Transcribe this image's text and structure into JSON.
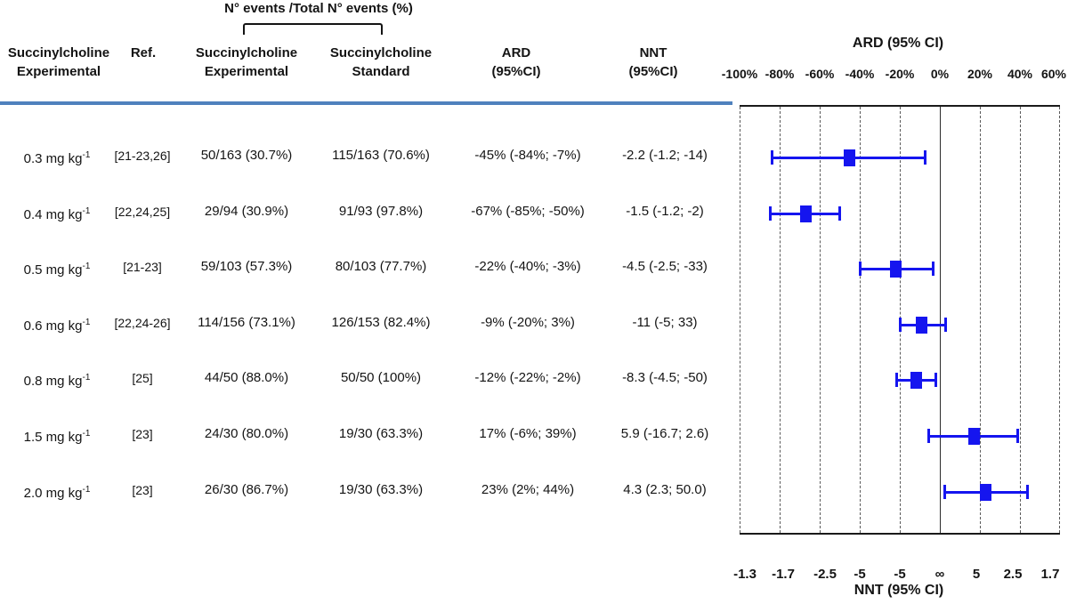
{
  "figure": {
    "bracket_label": "N° events /Total N° events (%)",
    "columns": {
      "dose_line1": "Succinylcholine",
      "dose_line2": "Experimental",
      "ref": "Ref.",
      "exp_line1": "Succinylcholine",
      "exp_line2": "Experimental",
      "std_line1": "Succinylcholine",
      "std_line2": "Standard",
      "ard_line1": "ARD",
      "ard_line2": "(95%CI)",
      "nnt_line1": "NNT",
      "nnt_line2": "(95%CI)"
    },
    "rows": [
      {
        "dose": "0.3 mg kg",
        "dose_sup": "-1",
        "ref": "[21-23,26]",
        "experimental": "50/163 (30.7%)",
        "standard": "115/163 (70.6%)",
        "ard": "-45% (-84%; -7%)",
        "nnt": "-2.2 (-1.2; -14)"
      },
      {
        "dose": "0.4 mg kg",
        "dose_sup": "-1",
        "ref": "[22,24,25]",
        "experimental": "29/94 (30.9%)",
        "standard": "91/93 (97.8%)",
        "ard": "-67% (-85%; -50%)",
        "nnt": "-1.5 (-1.2; -2)"
      },
      {
        "dose": "0.5 mg kg",
        "dose_sup": "-1",
        "ref": "[21-23]",
        "experimental": "59/103 (57.3%)",
        "standard": "80/103 (77.7%)",
        "ard": "-22% (-40%; -3%)",
        "nnt": "-4.5 (-2.5; -33)"
      },
      {
        "dose": "0.6 mg kg",
        "dose_sup": "-1",
        "ref": "[22,24-26]",
        "experimental": "114/156 (73.1%)",
        "standard": "126/153 (82.4%)",
        "ard": "-9% (-20%; 3%)",
        "nnt": "-11 (-5; 33)"
      },
      {
        "dose": "0.8 mg kg",
        "dose_sup": "-1",
        "ref": "[25]",
        "experimental": "44/50 (88.0%)",
        "standard": "50/50 (100%)",
        "ard": "-12% (-22%; -2%)",
        "nnt": "-8.3 (-4.5; -50)"
      },
      {
        "dose": "1.5 mg kg",
        "dose_sup": "-1",
        "ref": "[23]",
        "experimental": "24/30 (80.0%)",
        "standard": "19/30 (63.3%)",
        "ard": "17% (-6%; 39%)",
        "nnt": "5.9 (-16.7; 2.6)"
      },
      {
        "dose": "2.0 mg kg",
        "dose_sup": "-1",
        "ref": "[23]",
        "experimental": "26/30 (86.7%)",
        "standard": "19/30 (63.3%)",
        "ard": "23% (2%; 44%)",
        "nnt": "4.3 (2.3; 50.0)"
      }
    ]
  },
  "chart_data": {
    "type": "scatter",
    "subtype": "forest-plot",
    "title": "ARD (95% CI)",
    "xlabel": "ARD (95% CI)",
    "xlim": [
      -100,
      60
    ],
    "x_axis_ticks": [
      "-100%",
      "-80%",
      "-60%",
      "-40%",
      "-20%",
      "0%",
      "20%",
      "40%",
      "60%"
    ],
    "x_axis_tick_values": [
      -100,
      -80,
      -60,
      -40,
      -20,
      0,
      20,
      40,
      60
    ],
    "zero_line_at": 0,
    "grid": "vertical-dashed",
    "legend_position": "none",
    "secondary_axis_label": "NNT (95% CI)",
    "secondary_axis_ticks": [
      "-1.3",
      "-1.7",
      "-2.5",
      "-5",
      "-5",
      "∞",
      "5",
      "2.5",
      "1.7"
    ],
    "series": [
      {
        "name": "ARD point estimate with 95% CI",
        "points": [
          {
            "label": "0.3 mg kg-1",
            "value": -45,
            "ci_low": -84,
            "ci_high": -7
          },
          {
            "label": "0.4 mg kg-1",
            "value": -67,
            "ci_low": -85,
            "ci_high": -50
          },
          {
            "label": "0.5 mg kg-1",
            "value": -22,
            "ci_low": -40,
            "ci_high": -3
          },
          {
            "label": "0.6 mg kg-1",
            "value": -9,
            "ci_low": -20,
            "ci_high": 3
          },
          {
            "label": "0.8 mg kg-1",
            "value": -12,
            "ci_low": -22,
            "ci_high": -2
          },
          {
            "label": "1.5 mg kg-1",
            "value": 17,
            "ci_low": -6,
            "ci_high": 39
          },
          {
            "label": "2.0 mg kg-1",
            "value": 23,
            "ci_low": 2,
            "ci_high": 44
          }
        ]
      }
    ]
  },
  "colors": {
    "marker_blue": "#1515ef",
    "header_rule_blue": "#4f81bd",
    "text": "#141414",
    "gridline": "#5a5a5a"
  }
}
